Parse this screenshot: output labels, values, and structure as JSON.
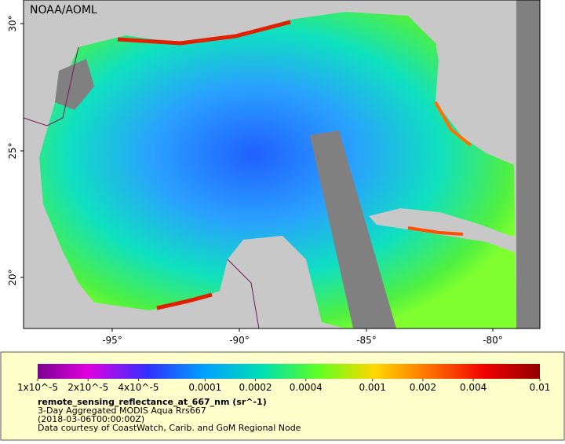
{
  "map": {
    "title": "NOAA/AOML",
    "lat_labels": [
      "30°",
      "25°",
      "20°"
    ],
    "lon_labels": [
      "-95°",
      "-90°",
      "-85°",
      "-80°"
    ]
  },
  "legend": {
    "range": [
      1e-05,
      0.01
    ],
    "ticks": [
      {
        "value": 1e-05,
        "label": "1x10^-5"
      },
      {
        "value": 2e-05,
        "label": "2x10^-5"
      },
      {
        "value": 4e-05,
        "label": "4x10^-5"
      },
      0.0001,
      0.0002,
      0.0004,
      0.001,
      0.002,
      0.004,
      0.01
    ],
    "variable": "remote_sensing_reflectance_at_667_nm (sr^-1)",
    "lines": [
      "3-Day Aggregated MODIS Aqua Rrs667",
      "(2018-03-06T00:00:00Z)",
      "Data courtesy of CoastWatch, Carib. and GoM Regional Node"
    ]
  }
}
